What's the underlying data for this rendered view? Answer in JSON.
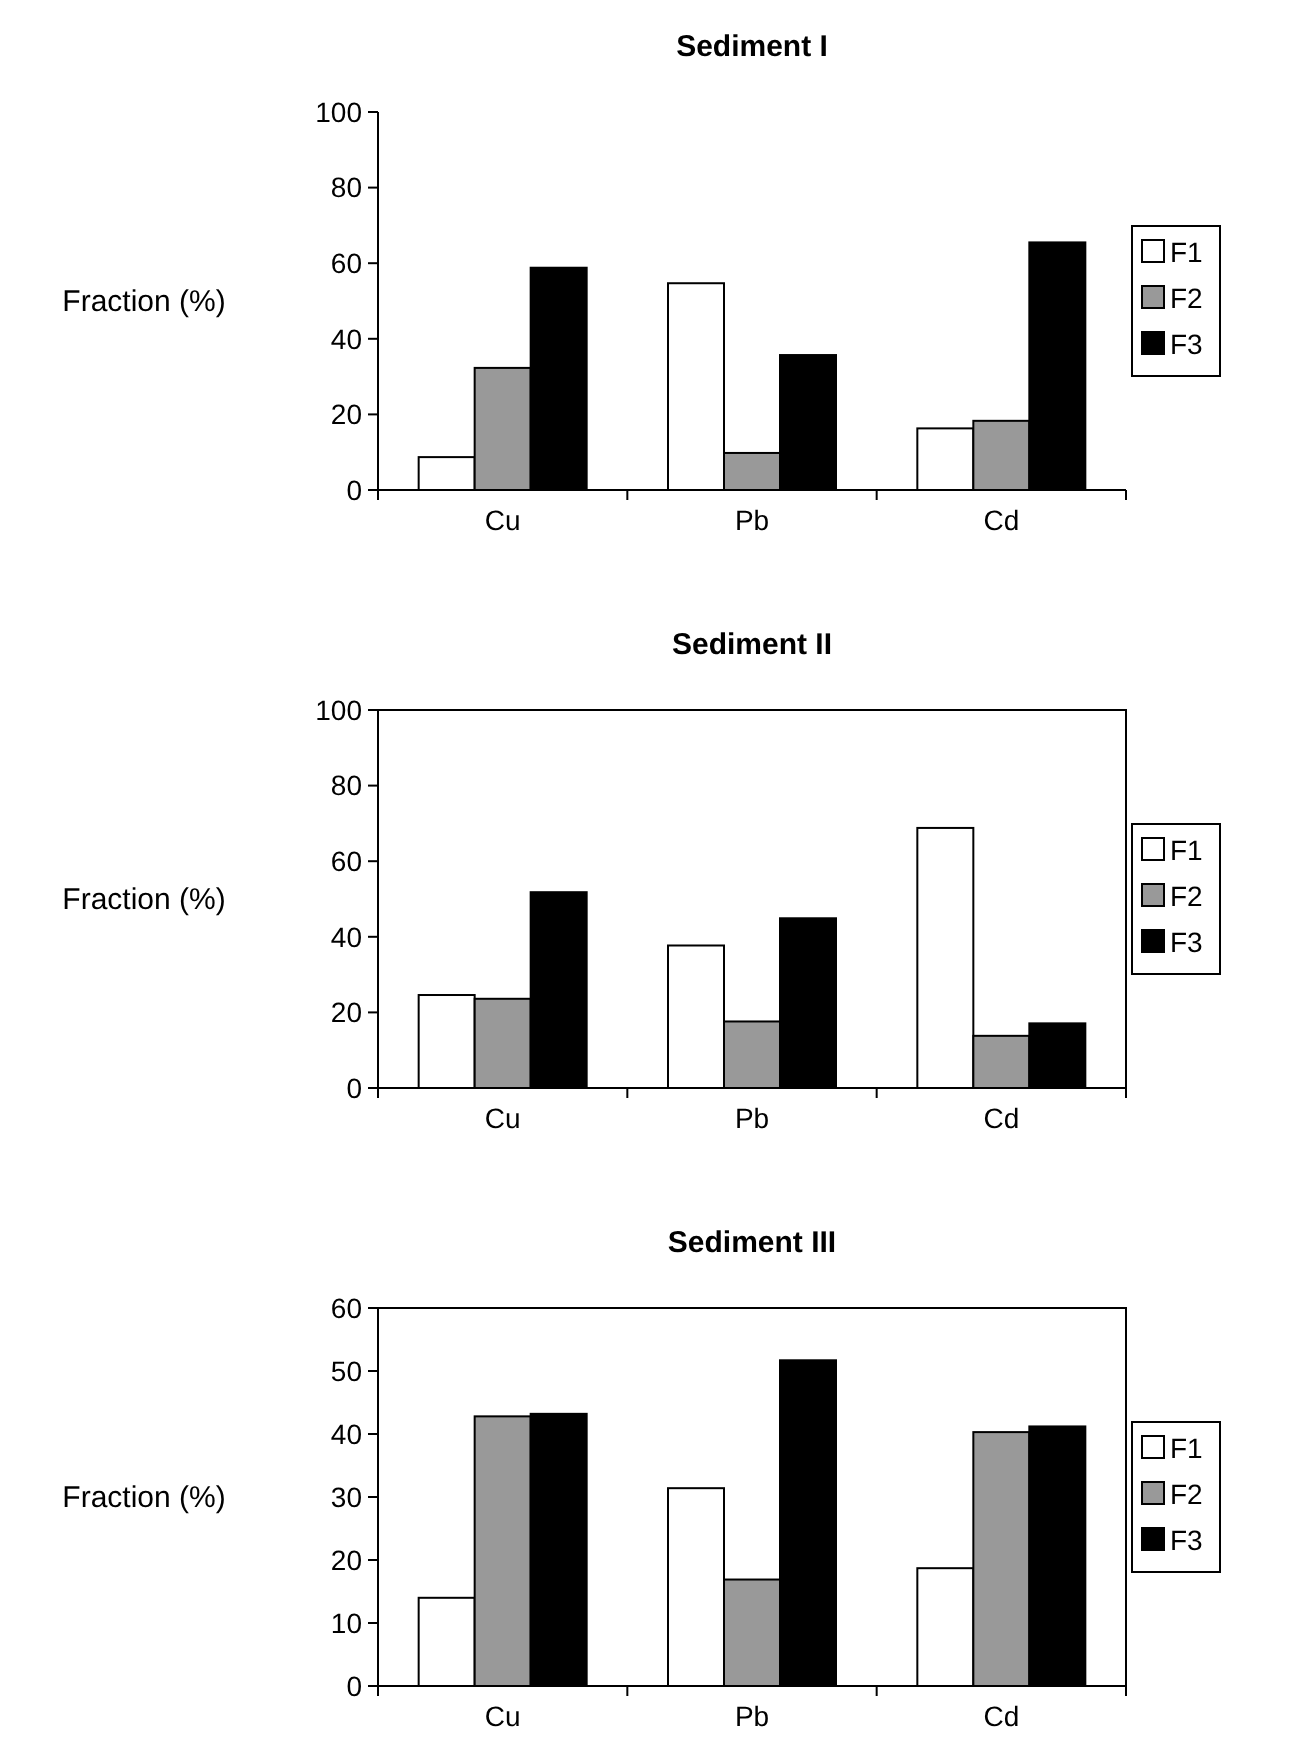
{
  "chart_data": [
    {
      "type": "bar",
      "title": "Sediment I",
      "ylabel": "Fraction (%)",
      "categories": [
        "Cu",
        "Pb",
        "Cd"
      ],
      "ylim": [
        0,
        100
      ],
      "yticks": [
        0,
        20,
        40,
        60,
        80,
        100
      ],
      "legend": "right",
      "series": [
        {
          "name": "F1",
          "color": "#ffffff",
          "values": [
            8.7,
            54.7,
            16.3
          ]
        },
        {
          "name": "F2",
          "color": "#999999",
          "values": [
            32.3,
            9.8,
            18.3
          ]
        },
        {
          "name": "F3",
          "color": "#000000",
          "values": [
            58.8,
            35.7,
            65.5
          ]
        }
      ]
    },
    {
      "type": "bar",
      "title": "Sediment II",
      "ylabel": "Fraction (%)",
      "categories": [
        "Cu",
        "Pb",
        "Cd"
      ],
      "ylim": [
        0,
        100
      ],
      "yticks": [
        0,
        20,
        40,
        60,
        80,
        100
      ],
      "legend": "right",
      "series": [
        {
          "name": "F1",
          "color": "#ffffff",
          "values": [
            24.6,
            37.7,
            68.8
          ]
        },
        {
          "name": "F2",
          "color": "#999999",
          "values": [
            23.6,
            17.6,
            13.8
          ]
        },
        {
          "name": "F3",
          "color": "#000000",
          "values": [
            51.8,
            44.9,
            17.1
          ]
        }
      ]
    },
    {
      "type": "bar",
      "title": "Sediment III",
      "ylabel": "Fraction (%)",
      "categories": [
        "Cu",
        "Pb",
        "Cd"
      ],
      "ylim": [
        0,
        60
      ],
      "yticks": [
        0,
        10,
        20,
        30,
        40,
        50,
        60
      ],
      "legend": "right",
      "series": [
        {
          "name": "F1",
          "color": "#ffffff",
          "values": [
            14.0,
            31.4,
            18.7
          ]
        },
        {
          "name": "F2",
          "color": "#999999",
          "values": [
            42.8,
            16.9,
            40.3
          ]
        },
        {
          "name": "F3",
          "color": "#000000",
          "values": [
            43.2,
            51.7,
            41.2
          ]
        }
      ]
    }
  ]
}
